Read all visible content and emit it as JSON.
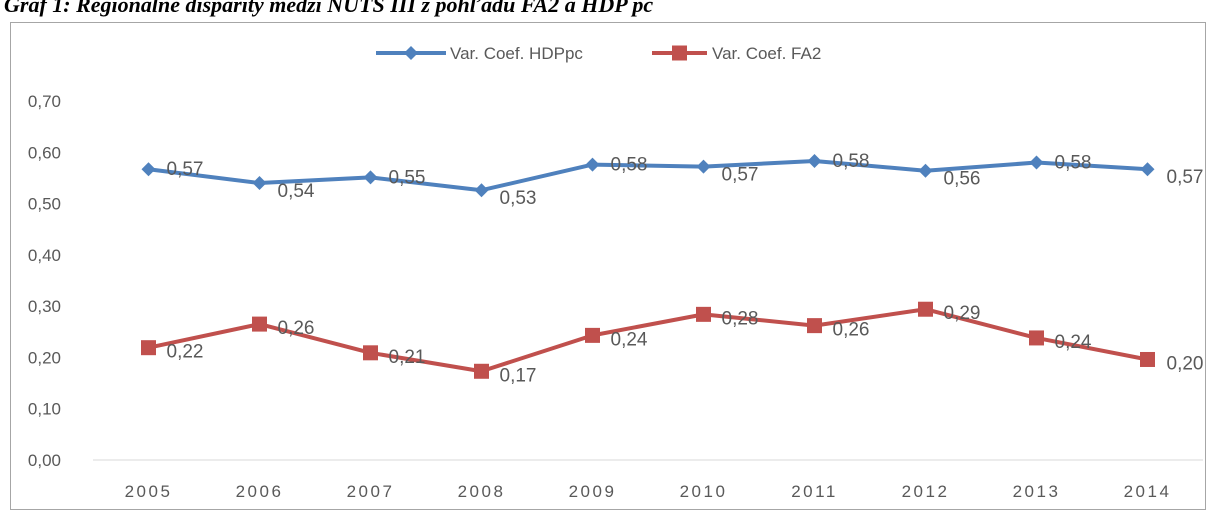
{
  "caption": "Graf 1: Regionálne disparity medzi NUTS III z pohľadu FA2 a HDP pc",
  "chart_data": {
    "type": "line",
    "categories": [
      "2005",
      "2006",
      "2007",
      "2008",
      "2009",
      "2010",
      "2011",
      "2012",
      "2013",
      "2014"
    ],
    "series": [
      {
        "name": "Var. Coef. HDPpc",
        "values": [
          0.567,
          0.54,
          0.551,
          0.526,
          0.576,
          0.572,
          0.583,
          0.564,
          0.58,
          0.567
        ],
        "labels": [
          "0,57",
          "0,54",
          "0,55",
          "0,53",
          "0,58",
          "0,57",
          "0,58",
          "0,56",
          "0,58",
          "0,57"
        ],
        "color": "#4f81bd",
        "marker": "diamond"
      },
      {
        "name": "Var. Coef. FA2",
        "values": [
          0.219,
          0.265,
          0.209,
          0.173,
          0.243,
          0.284,
          0.262,
          0.294,
          0.238,
          0.196
        ],
        "labels": [
          "0,22",
          "0,26",
          "0,21",
          "0,17",
          "0,24",
          "0,28",
          "0,26",
          "0,29",
          "0,24",
          "0,20"
        ],
        "color": "#c0504d",
        "marker": "square"
      }
    ],
    "yticks": [
      "0,00",
      "0,10",
      "0,20",
      "0,30",
      "0,40",
      "0,50",
      "0,60",
      "0,70"
    ],
    "ylim": [
      0,
      0.7
    ],
    "legend_position": "top",
    "grid": false
  }
}
